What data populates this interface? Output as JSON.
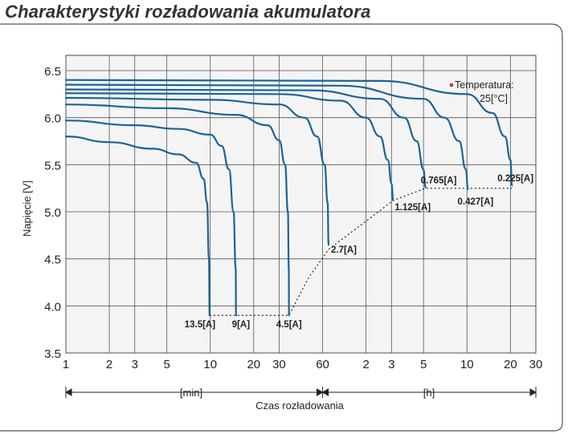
{
  "title": "Charakterystyki rozładowania akumulatora",
  "chart_data": {
    "type": "line",
    "title": "Charakterystyki rozładowania akumulatora",
    "xlabel": "Czas rozładowania",
    "ylabel": "Napięcie [V]",
    "x_scale": "log",
    "x_unit_min": "[min]",
    "x_unit_h": "[h]",
    "x_ticks": [
      {
        "min": 1,
        "label": "1"
      },
      {
        "min": 2,
        "label": "2"
      },
      {
        "min": 3,
        "label": "3"
      },
      {
        "min": 5,
        "label": "5"
      },
      {
        "min": 10,
        "label": "10"
      },
      {
        "min": 20,
        "label": "20"
      },
      {
        "min": 30,
        "label": "30"
      },
      {
        "min": 60,
        "label": "60"
      },
      {
        "min": 120,
        "label": "2"
      },
      {
        "min": 180,
        "label": "3"
      },
      {
        "min": 300,
        "label": "5"
      },
      {
        "min": 600,
        "label": "10"
      },
      {
        "min": 1200,
        "label": "20"
      },
      {
        "min": 1800,
        "label": "30"
      }
    ],
    "y_ticks": [
      "3.5",
      "4.0",
      "4.5",
      "5.0",
      "5.5",
      "6.0",
      "6.5"
    ],
    "ylim": [
      3.5,
      6.5
    ],
    "xlim_min": [
      1,
      1800
    ],
    "grid": true,
    "annotation": [
      "Temperatura:",
      "25[°C]"
    ],
    "annotation_marker_color": "#c0392b",
    "line_color": "#1a6496",
    "series": [
      {
        "label": "13.5[A]",
        "points": [
          [
            1,
            5.8
          ],
          [
            2,
            5.74
          ],
          [
            4,
            5.67
          ],
          [
            6,
            5.61
          ],
          [
            8,
            5.52
          ],
          [
            9,
            5.35
          ],
          [
            9.5,
            5.1
          ],
          [
            9.8,
            4.5
          ],
          [
            9.9,
            3.9
          ]
        ]
      },
      {
        "label": "9[A]",
        "points": [
          [
            1,
            5.97
          ],
          [
            3,
            5.92
          ],
          [
            6,
            5.88
          ],
          [
            10,
            5.82
          ],
          [
            12,
            5.7
          ],
          [
            13.5,
            5.45
          ],
          [
            14.5,
            5.0
          ],
          [
            15,
            4.4
          ],
          [
            15.1,
            3.9
          ]
        ]
      },
      {
        "label": "4.5[A]",
        "points": [
          [
            1,
            6.14
          ],
          [
            5,
            6.1
          ],
          [
            15,
            6.03
          ],
          [
            25,
            5.92
          ],
          [
            30,
            5.76
          ],
          [
            33,
            5.5
          ],
          [
            34.5,
            5.0
          ],
          [
            35,
            4.4
          ],
          [
            35.1,
            3.9
          ]
        ]
      },
      {
        "label": "2.7[A]",
        "points": [
          [
            1,
            6.21
          ],
          [
            10,
            6.19
          ],
          [
            30,
            6.14
          ],
          [
            45,
            6.0
          ],
          [
            55,
            5.8
          ],
          [
            62,
            5.5
          ],
          [
            65,
            5.1
          ],
          [
            66,
            4.65
          ]
        ]
      },
      {
        "label": "1.125[A]",
        "points": [
          [
            1,
            6.26
          ],
          [
            30,
            6.25
          ],
          [
            80,
            6.18
          ],
          [
            120,
            6.0
          ],
          [
            150,
            5.8
          ],
          [
            170,
            5.55
          ],
          [
            180,
            5.3
          ],
          [
            185,
            5.12
          ]
        ]
      },
      {
        "label": "0.765[A]",
        "points": [
          [
            1,
            6.3
          ],
          [
            50,
            6.29
          ],
          [
            150,
            6.2
          ],
          [
            220,
            6.0
          ],
          [
            270,
            5.75
          ],
          [
            300,
            5.45
          ],
          [
            310,
            5.26
          ]
        ]
      },
      {
        "label": "0.427[A]",
        "points": [
          [
            1,
            6.35
          ],
          [
            80,
            6.34
          ],
          [
            300,
            6.2
          ],
          [
            420,
            6.0
          ],
          [
            530,
            5.75
          ],
          [
            590,
            5.45
          ],
          [
            610,
            5.24
          ]
        ]
      },
      {
        "label": "0.225[A]",
        "points": [
          [
            1,
            6.4
          ],
          [
            150,
            6.39
          ],
          [
            600,
            6.25
          ],
          [
            900,
            6.05
          ],
          [
            1100,
            5.8
          ],
          [
            1200,
            5.55
          ],
          [
            1230,
            5.28
          ]
        ]
      }
    ],
    "end_of_discharge_line": [
      [
        9.9,
        3.9
      ],
      [
        35.1,
        3.9
      ],
      [
        48,
        4.3
      ],
      [
        66,
        4.6
      ],
      [
        120,
        4.9
      ],
      [
        185,
        5.12
      ],
      [
        310,
        5.25
      ],
      [
        1230,
        5.25
      ]
    ]
  }
}
